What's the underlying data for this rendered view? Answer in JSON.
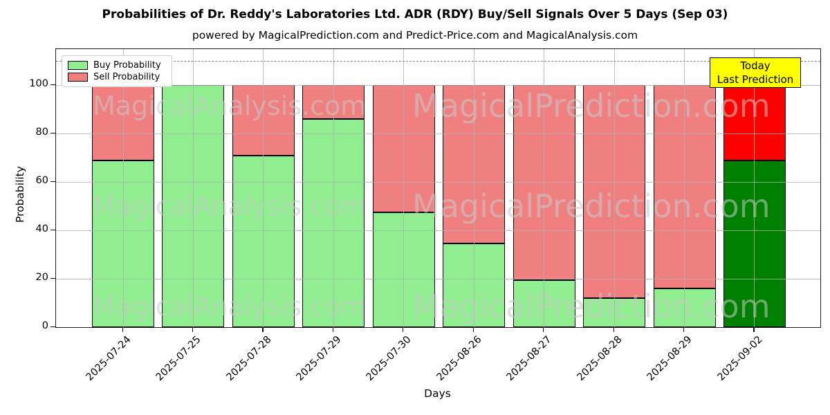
{
  "header": {
    "title": "Probabilities of Dr. Reddy's Laboratories Ltd. ADR (RDY) Buy/Sell Signals Over 5 Days (Sep 03)",
    "subtitle": "powered by MagicalPrediction.com and Predict-Price.com and MagicalAnalysis.com"
  },
  "chart_data": {
    "type": "bar",
    "stacked": true,
    "title": "Probabilities of Dr. Reddy's Laboratories Ltd. ADR (RDY) Buy/Sell Signals Over 5 Days (Sep 03)",
    "subtitle": "powered by MagicalPrediction.com and Predict-Price.com and MagicalAnalysis.com",
    "xlabel": "Days",
    "ylabel": "Probability",
    "ylim": [
      0,
      115
    ],
    "yticks": [
      0,
      20,
      40,
      60,
      80,
      100
    ],
    "grid": true,
    "legend_position": "upper left",
    "reference_line_y": 110,
    "categories": [
      "2025-07-24",
      "2025-07-25",
      "2025-07-28",
      "2025-07-29",
      "2025-07-30",
      "2025-08-26",
      "2025-08-27",
      "2025-08-28",
      "2025-08-29",
      "2025-09-02"
    ],
    "series": [
      {
        "name": "Buy Probability",
        "color": "#90ee90",
        "values": [
          69,
          100,
          71,
          86,
          47.5,
          34.5,
          19.5,
          12,
          16,
          69
        ]
      },
      {
        "name": "Sell Probability",
        "color": "#f08080",
        "values": [
          31,
          0,
          29,
          14,
          52.5,
          65.5,
          80.5,
          88,
          84,
          31
        ]
      }
    ],
    "highlight_bar": {
      "category": "2025-09-02",
      "buy_color": "#008000",
      "sell_color": "#ff0000"
    }
  },
  "legend": {
    "items": [
      {
        "label": "Buy Probability",
        "color": "#90ee90"
      },
      {
        "label": "Sell Probability",
        "color": "#f08080"
      }
    ]
  },
  "annotation": {
    "line1": "Today",
    "line2": "Last Prediction",
    "bg_color": "#ffff00"
  },
  "watermarks": {
    "left_text": "MagicalAnalysis.com",
    "right_text": "MagicalPrediction.com",
    "rows": 3
  }
}
